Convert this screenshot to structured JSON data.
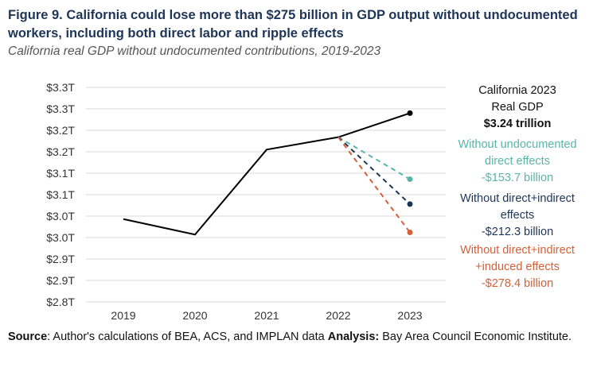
{
  "header": {
    "title": "Figure 9. California could lose more than $275 billion in GDP output without undocumented workers, including both direct labor and ripple effects",
    "subtitle": "California real GDP without undocumented contributions, 2019-2023"
  },
  "annotations": {
    "total": {
      "line1": "California 2023",
      "line2": "Real GDP",
      "line3": "$3.24 trillion",
      "color": "#111111"
    },
    "direct": {
      "line1": "Without undocumented",
      "line2": "direct effects",
      "line3": "-$153.7 billion",
      "color": "#5ab4a8"
    },
    "indirect": {
      "line1": "Without direct+indirect",
      "line2": "effects",
      "line3": "-$212.3 billion",
      "color": "#1d3557"
    },
    "induced": {
      "line1": "Without direct+indirect",
      "line2": "+induced effects",
      "line3": "-$278.4 billion",
      "color": "#d4603a"
    }
  },
  "source": {
    "source_label": "Source",
    "source_text": ": Author's calculations of BEA, ACS, and IMPLAN data ",
    "analysis_label": "Analysis:",
    "analysis_text": " Bay Area Council Economic Institute."
  },
  "chart_data": {
    "type": "line",
    "title": "California real GDP without undocumented contributions, 2019-2023",
    "xlabel": "",
    "ylabel": "",
    "categories": [
      "2019",
      "2020",
      "2021",
      "2022",
      "2023"
    ],
    "yticks": [
      2.8,
      2.85,
      2.9,
      2.95,
      3.0,
      3.05,
      3.1,
      3.15,
      3.2,
      3.25,
      3.3
    ],
    "ytick_labels": [
      "$2.8T",
      "$2.9T",
      "$2.9T",
      "$3.0T",
      "$3.0T",
      "$3.1T",
      "$3.1T",
      "$3.2T",
      "$3.2T",
      "$3.3T",
      "$3.3T"
    ],
    "ylim": [
      2.8,
      3.3
    ],
    "grid": true,
    "series": [
      {
        "name": "California real GDP",
        "style": "solid",
        "color": "#000000",
        "values": [
          2.993,
          2.957,
          3.155,
          3.184,
          3.24
        ]
      },
      {
        "name": "Without undocumented direct effects",
        "style": "dashed",
        "color": "#5ab4a8",
        "values": [
          null,
          null,
          null,
          3.184,
          3.086
        ]
      },
      {
        "name": "Without direct+indirect effects",
        "style": "dashed",
        "color": "#1d3557",
        "values": [
          null,
          null,
          null,
          3.184,
          3.028
        ]
      },
      {
        "name": "Without direct+indirect+induced effects",
        "style": "dashed",
        "color": "#d4603a",
        "values": [
          null,
          null,
          null,
          3.184,
          2.962
        ]
      }
    ]
  }
}
